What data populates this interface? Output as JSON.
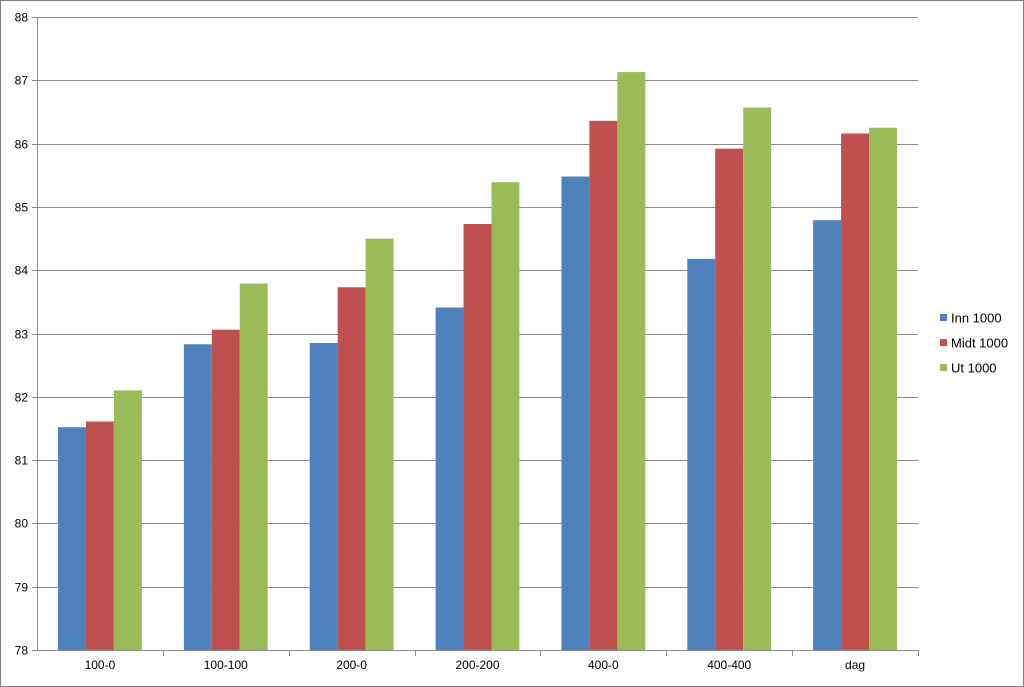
{
  "chart_data": {
    "type": "bar",
    "categories": [
      "100-0",
      "100-100",
      "200-0",
      "200-200",
      "400-0",
      "400-400",
      "dag"
    ],
    "series": [
      {
        "name": "Inn 1000",
        "color": "#4f81bd",
        "values": [
          81.52,
          82.83,
          82.85,
          83.41,
          85.48,
          84.18,
          84.79
        ]
      },
      {
        "name": "Midt 1000",
        "color": "#c0504d",
        "values": [
          81.61,
          83.06,
          83.73,
          84.73,
          86.36,
          85.92,
          86.16
        ]
      },
      {
        "name": "Ut 1000",
        "color": "#9bbb59",
        "values": [
          82.1,
          83.79,
          84.5,
          85.39,
          87.13,
          86.57,
          86.25
        ]
      }
    ],
    "ylim": [
      78,
      88
    ],
    "yticks": [
      78,
      79,
      80,
      81,
      82,
      83,
      84,
      85,
      86,
      87,
      88
    ],
    "grid": true,
    "legend_position": "right",
    "title": "",
    "xlabel": "",
    "ylabel": ""
  }
}
